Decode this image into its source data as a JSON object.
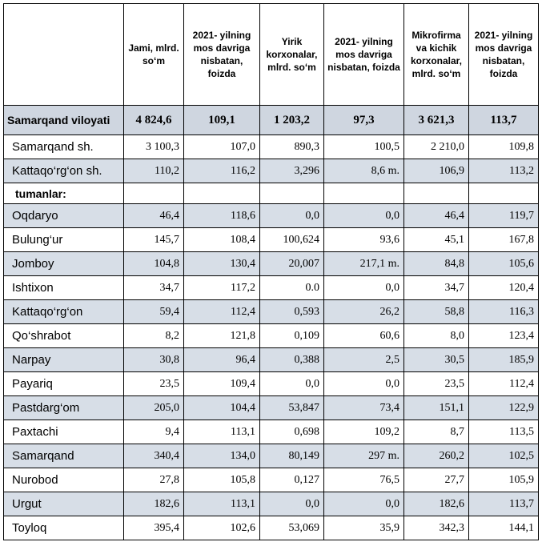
{
  "headers": [
    "",
    "Jami, mlrd. so‘m",
    "2021- yilning mos davriga nisbatan, foizda",
    "Yirik korxonalar, mlrd. so‘m",
    "2021- yilning mos davriga nisbatan, foizda",
    "Mikrofirma va kichik korxonalar, mlrd. so‘m",
    "2021- yilning mos davriga nisbatan, foizda"
  ],
  "total": {
    "name": "Samarqand viloyati",
    "cells": [
      "4 824,6",
      "109,1",
      "1 203,2",
      "97,3",
      "3 621,3",
      "113,7"
    ]
  },
  "cities": [
    {
      "name": "Samarqand sh.",
      "cells": [
        "3 100,3",
        "107,0",
        "890,3",
        "100,5",
        "2 210,0",
        "109,8"
      ]
    },
    {
      "name": "Kattaqo‘rg‘on  sh.",
      "cells": [
        "110,2",
        "116,2",
        "3,296",
        "8,6 m.",
        "106,9",
        "113,2"
      ]
    }
  ],
  "section_label": "tumanlar:",
  "districts": [
    {
      "name": "Oqdaryo",
      "cells": [
        "46,4",
        "118,6",
        "0,0",
        "0,0",
        "46,4",
        "119,7"
      ]
    },
    {
      "name": "Bulung‘ur",
      "cells": [
        "145,7",
        "108,4",
        "100,624",
        "93,6",
        "45,1",
        "167,8"
      ]
    },
    {
      "name": "Jomboy",
      "cells": [
        "104,8",
        "130,4",
        "20,007",
        "217,1 m.",
        "84,8",
        "105,6"
      ]
    },
    {
      "name": "Ishtixon",
      "cells": [
        "34,7",
        "117,2",
        "0.0",
        "0,0",
        "34,7",
        "120,4"
      ]
    },
    {
      "name": "Kattaqo‘rg‘on",
      "cells": [
        "59,4",
        "112,4",
        "0,593",
        "26,2",
        "58,8",
        "116,3"
      ]
    },
    {
      "name": "Qo‘shrabot",
      "cells": [
        "8,2",
        "121,8",
        "0,109",
        "60,6",
        "8,0",
        "123,4"
      ]
    },
    {
      "name": "Narpay",
      "cells": [
        "30,8",
        "96,4",
        "0,388",
        "2,5",
        "30,5",
        "185,9"
      ]
    },
    {
      "name": "Payariq",
      "cells": [
        "23,5",
        "109,4",
        "0,0",
        "0,0",
        "23,5",
        "112,4"
      ]
    },
    {
      "name": "Pastdarg‘om",
      "cells": [
        "205,0",
        "104,4",
        "53,847",
        "73,4",
        "151,1",
        "122,9"
      ]
    },
    {
      "name": "Paxtachi",
      "cells": [
        "9,4",
        "113,1",
        "0,698",
        "109,2",
        "8,7",
        "113,5"
      ]
    },
    {
      "name": "Samarqand",
      "cells": [
        "340,4",
        "134,0",
        "80,149",
        "297 m.",
        "260,2",
        "102,5"
      ]
    },
    {
      "name": "Nurobod",
      "cells": [
        "27,8",
        "105,8",
        "0,127",
        "76,5",
        "27,7",
        "105,9"
      ]
    },
    {
      "name": "Urgut",
      "cells": [
        "182,6",
        "113,1",
        "0,0",
        "0,0",
        "182,6",
        "113,7"
      ]
    },
    {
      "name": "Toyloq",
      "cells": [
        "395,4",
        "102,6",
        "53,069",
        "35,9",
        "342,3",
        "144,1"
      ]
    }
  ]
}
